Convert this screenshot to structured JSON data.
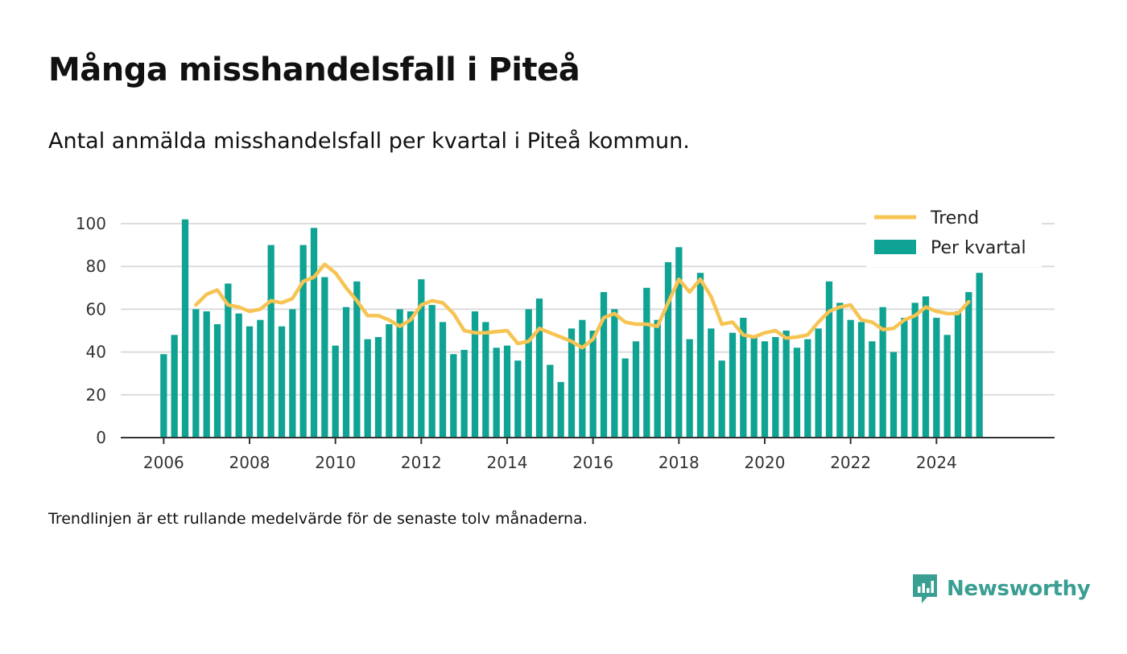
{
  "title": "Många misshandelsfall i Piteå",
  "subtitle": "Antal anmälda misshandelsfall per kvartal i Piteå kommun.",
  "note": "Trendlinjen är ett rullande medelvärde för de senaste tolv månaderna.",
  "brand": "Newsworthy",
  "colors": {
    "bar": "#0fa394",
    "trend": "#f7c453",
    "grid": "#dcdcdc",
    "axis": "#333333",
    "brand": "#3a9e92"
  },
  "chart_data": {
    "type": "bar",
    "x_start": 2006.0,
    "x_step": 0.25,
    "xlim": [
      2005.0,
      2026.75
    ],
    "ylim": [
      0,
      100
    ],
    "x_ticks": [
      "2006",
      "2008",
      "2010",
      "2012",
      "2014",
      "2016",
      "2018",
      "2020",
      "2022",
      "2024"
    ],
    "y_ticks": [
      "0",
      "20",
      "40",
      "60",
      "80",
      "100"
    ],
    "grid": true,
    "legend_position": "top-right",
    "series": [
      {
        "name": "Per kvartal",
        "type": "bar",
        "values": [
          39,
          48,
          102,
          60,
          59,
          53,
          72,
          58,
          52,
          55,
          90,
          52,
          60,
          90,
          98,
          75,
          43,
          61,
          73,
          46,
          47,
          53,
          60,
          59,
          74,
          62,
          54,
          39,
          41,
          59,
          54,
          42,
          43,
          36,
          60,
          65,
          34,
          26,
          51,
          55,
          50,
          68,
          60,
          37,
          45,
          70,
          55,
          82,
          89,
          46,
          77,
          51,
          36,
          49,
          56,
          47,
          45,
          47,
          50,
          42,
          46,
          51,
          73,
          63,
          55,
          54,
          45,
          61,
          40,
          56,
          63,
          66,
          56,
          48,
          59,
          68,
          77
        ]
      },
      {
        "name": "Trend",
        "type": "line",
        "x_start": 2006.75,
        "values": [
          62,
          67,
          69,
          62,
          61,
          59,
          60,
          64,
          63,
          65,
          73,
          75,
          81,
          77,
          70,
          64,
          57,
          57,
          55,
          52,
          55,
          62,
          64,
          63,
          58,
          50,
          49,
          49,
          49.5,
          50,
          44,
          45,
          51,
          49,
          47,
          45,
          42,
          46,
          56,
          58,
          54,
          53,
          53,
          52,
          63,
          74,
          68,
          74,
          66,
          53,
          54,
          48,
          47,
          49,
          50,
          46.5,
          47,
          48,
          54,
          59,
          61,
          62,
          55,
          54,
          50.5,
          51,
          55,
          57,
          61,
          59,
          58,
          58,
          63.5
        ]
      }
    ]
  }
}
